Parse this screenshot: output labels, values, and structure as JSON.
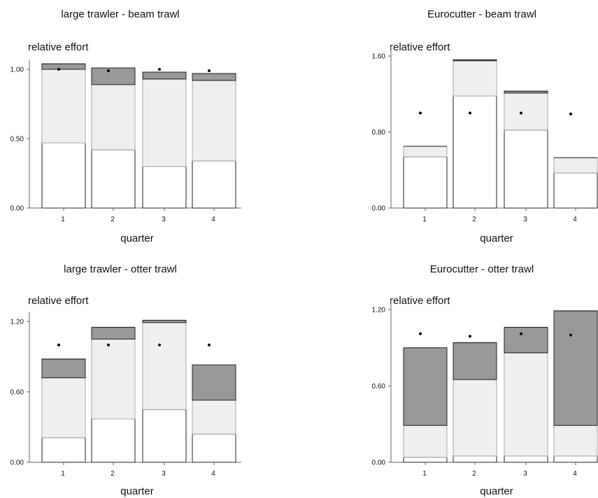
{
  "chart_data": [
    {
      "type": "bar",
      "stacked": true,
      "title": "large trawler - beam trawl",
      "ylabel": "relative effort",
      "xlabel": "quarter",
      "categories": [
        "1",
        "2",
        "3",
        "4"
      ],
      "ylim": [
        0,
        1.0
      ],
      "yticks": [
        "0.00",
        "0.50",
        "1.00"
      ],
      "segments": [
        {
          "fill": "#ffffff",
          "values": [
            0.47,
            0.42,
            0.3,
            0.34
          ]
        },
        {
          "fill": "#efefef",
          "values": [
            0.53,
            0.47,
            0.63,
            0.58
          ]
        },
        {
          "fill": "#999999",
          "values": [
            0.04,
            0.12,
            0.05,
            0.05
          ]
        }
      ],
      "points": [
        1.0,
        0.99,
        1.0,
        0.99
      ]
    },
    {
      "type": "bar",
      "stacked": true,
      "title": "Eurocutter - beam trawl",
      "ylabel": "relative effort",
      "xlabel": "quarter",
      "categories": [
        "1",
        "2",
        "3",
        "4"
      ],
      "ylim": [
        0,
        1.6
      ],
      "yticks": [
        "0.00",
        "0.80",
        "1.60"
      ],
      "segments": [
        {
          "fill": "#ffffff",
          "values": [
            0.54,
            1.18,
            0.82,
            0.37
          ]
        },
        {
          "fill": "#efefef",
          "values": [
            0.11,
            0.37,
            0.39,
            0.16
          ]
        },
        {
          "fill": "#999999",
          "values": [
            0.0,
            0.01,
            0.02,
            0.0
          ]
        }
      ],
      "points": [
        1.0,
        1.0,
        1.0,
        0.99
      ]
    },
    {
      "type": "bar",
      "stacked": true,
      "title": "large trawler - otter trawl",
      "ylabel": "relative effort",
      "xlabel": "quarter",
      "categories": [
        "1",
        "2",
        "3",
        "4"
      ],
      "ylim": [
        0,
        1.2
      ],
      "yticks": [
        "0.00",
        "0.60",
        "1.20"
      ],
      "segments": [
        {
          "fill": "#ffffff",
          "values": [
            0.21,
            0.37,
            0.45,
            0.24
          ]
        },
        {
          "fill": "#efefef",
          "values": [
            0.51,
            0.68,
            0.74,
            0.29
          ]
        },
        {
          "fill": "#999999",
          "values": [
            0.16,
            0.1,
            0.02,
            0.3
          ]
        }
      ],
      "points": [
        1.0,
        1.0,
        1.0,
        1.0
      ]
    },
    {
      "type": "bar",
      "stacked": true,
      "title": "Eurocutter - otter trawl",
      "ylabel": "relative effort",
      "xlabel": "quarter",
      "categories": [
        "1",
        "2",
        "3",
        "4"
      ],
      "ylim": [
        0,
        1.2
      ],
      "yticks": [
        "0.00",
        "0.60",
        "1.20"
      ],
      "segments": [
        {
          "fill": "#ffffff",
          "values": [
            0.04,
            0.05,
            0.05,
            0.05
          ]
        },
        {
          "fill": "#efefef",
          "values": [
            0.25,
            0.6,
            0.81,
            0.24
          ]
        },
        {
          "fill": "#999999",
          "values": [
            0.61,
            0.29,
            0.2,
            0.9
          ]
        }
      ],
      "points": [
        1.01,
        0.99,
        1.01,
        1.0
      ]
    }
  ]
}
